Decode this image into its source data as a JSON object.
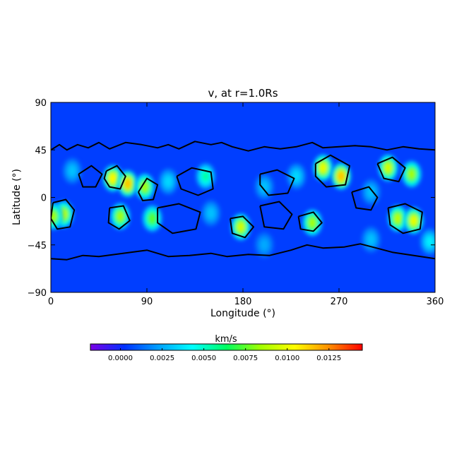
{
  "chart_data": {
    "type": "heatmap",
    "title": "v, at r=1.0Rs",
    "xlabel": "Longitude (°)",
    "ylabel": "Latitude (°)",
    "xlim": [
      0,
      360
    ],
    "ylim": [
      -90,
      90
    ],
    "x_ticks": [
      "0",
      "90",
      "180",
      "270",
      "360"
    ],
    "y_ticks": [
      "90",
      "45",
      "0",
      "−45",
      "−90"
    ],
    "colorbar": {
      "label": "km/s",
      "range": [
        -0.0018,
        0.0145
      ],
      "ticks": [
        "0.0000",
        "0.0025",
        "0.0050",
        "0.0075",
        "0.0100",
        "0.0125"
      ],
      "tick_values": [
        0.0,
        0.0025,
        0.005,
        0.0075,
        0.01,
        0.0125
      ],
      "colors": [
        "#7a00e6",
        "#0030ff",
        "#00a0ff",
        "#00ffff",
        "#00ff60",
        "#a0ff00",
        "#ffff00",
        "#ff9000",
        "#ff0000"
      ]
    },
    "background_value": 0.0005,
    "hot_spots": [
      {
        "lon": 58,
        "lat": 18,
        "value": 0.0105
      },
      {
        "lon": 72,
        "lat": 13,
        "value": 0.0115
      },
      {
        "lon": 88,
        "lat": 10,
        "value": 0.0085
      },
      {
        "lon": 12,
        "lat": -16,
        "value": 0.009
      },
      {
        "lon": 2,
        "lat": -18,
        "value": 0.0085
      },
      {
        "lon": 65,
        "lat": -18,
        "value": 0.0085
      },
      {
        "lon": 95,
        "lat": -20,
        "value": 0.0075
      },
      {
        "lon": 178,
        "lat": -28,
        "value": 0.0095
      },
      {
        "lon": 245,
        "lat": -24,
        "value": 0.0085
      },
      {
        "lon": 255,
        "lat": 28,
        "value": 0.01
      },
      {
        "lon": 272,
        "lat": 20,
        "value": 0.0115
      },
      {
        "lon": 316,
        "lat": 28,
        "value": 0.0095
      },
      {
        "lon": 338,
        "lat": 22,
        "value": 0.0085
      },
      {
        "lon": 325,
        "lat": -20,
        "value": 0.009
      },
      {
        "lon": 340,
        "lat": -22,
        "value": 0.01
      },
      {
        "lon": 145,
        "lat": 20,
        "value": 0.0055
      },
      {
        "lon": 110,
        "lat": 15,
        "value": 0.0035
      },
      {
        "lon": 20,
        "lat": 25,
        "value": 0.003
      },
      {
        "lon": 200,
        "lat": 10,
        "value": 0.003
      },
      {
        "lon": 230,
        "lat": 20,
        "value": 0.0035
      },
      {
        "lon": 300,
        "lat": 5,
        "value": 0.003
      },
      {
        "lon": 150,
        "lat": -15,
        "value": 0.003
      },
      {
        "lon": 200,
        "lat": -45,
        "value": 0.0025
      },
      {
        "lon": 300,
        "lat": -40,
        "value": 0.003
      },
      {
        "lon": 355,
        "lat": -42,
        "value": 0.004
      }
    ],
    "contours": [
      {
        "name": "north-boundary",
        "points": [
          [
            0,
            45
          ],
          [
            8,
            50
          ],
          [
            15,
            45
          ],
          [
            25,
            50
          ],
          [
            35,
            47
          ],
          [
            45,
            52
          ],
          [
            55,
            46
          ],
          [
            70,
            52
          ],
          [
            85,
            50
          ],
          [
            100,
            47
          ],
          [
            110,
            50
          ],
          [
            120,
            46
          ],
          [
            135,
            53
          ],
          [
            150,
            50
          ],
          [
            160,
            52
          ],
          [
            170,
            48
          ],
          [
            185,
            44
          ],
          [
            200,
            48
          ],
          [
            215,
            46
          ],
          [
            230,
            48
          ],
          [
            245,
            52
          ],
          [
            255,
            47
          ],
          [
            270,
            48
          ],
          [
            285,
            49
          ],
          [
            300,
            48
          ],
          [
            315,
            45
          ],
          [
            330,
            48
          ],
          [
            345,
            46
          ],
          [
            360,
            45
          ]
        ]
      },
      {
        "name": "south-boundary",
        "points": [
          [
            0,
            -58
          ],
          [
            15,
            -59
          ],
          [
            30,
            -55
          ],
          [
            45,
            -56
          ],
          [
            60,
            -54
          ],
          [
            75,
            -52
          ],
          [
            90,
            -50
          ],
          [
            110,
            -56
          ],
          [
            130,
            -55
          ],
          [
            150,
            -53
          ],
          [
            165,
            -56
          ],
          [
            185,
            -54
          ],
          [
            205,
            -55
          ],
          [
            225,
            -50
          ],
          [
            240,
            -45
          ],
          [
            255,
            -48
          ],
          [
            275,
            -47
          ],
          [
            290,
            -44
          ],
          [
            305,
            -48
          ],
          [
            320,
            -52
          ],
          [
            340,
            -55
          ],
          [
            360,
            -58
          ]
        ]
      },
      {
        "name": "loop-60-lon",
        "points": [
          [
            52,
            25
          ],
          [
            62,
            30
          ],
          [
            70,
            20
          ],
          [
            65,
            8
          ],
          [
            55,
            10
          ],
          [
            50,
            18
          ],
          [
            52,
            25
          ]
        ]
      },
      {
        "name": "loop-90-lon",
        "points": [
          [
            82,
            5
          ],
          [
            90,
            18
          ],
          [
            100,
            12
          ],
          [
            96,
            -2
          ],
          [
            86,
            -3
          ],
          [
            82,
            5
          ]
        ]
      },
      {
        "name": "loop-10-lon",
        "points": [
          [
            2,
            -5
          ],
          [
            14,
            -2
          ],
          [
            22,
            -12
          ],
          [
            18,
            -28
          ],
          [
            6,
            -30
          ],
          [
            0,
            -20
          ],
          [
            2,
            -5
          ]
        ]
      },
      {
        "name": "loop-65-south",
        "points": [
          [
            55,
            -10
          ],
          [
            68,
            -8
          ],
          [
            74,
            -22
          ],
          [
            64,
            -30
          ],
          [
            54,
            -24
          ],
          [
            55,
            -10
          ]
        ]
      },
      {
        "name": "loop-180",
        "points": [
          [
            168,
            -20
          ],
          [
            180,
            -18
          ],
          [
            190,
            -28
          ],
          [
            182,
            -38
          ],
          [
            170,
            -34
          ],
          [
            168,
            -20
          ]
        ]
      },
      {
        "name": "loop-245",
        "points": [
          [
            232,
            -18
          ],
          [
            246,
            -14
          ],
          [
            254,
            -24
          ],
          [
            246,
            -32
          ],
          [
            234,
            -30
          ],
          [
            232,
            -18
          ]
        ]
      },
      {
        "name": "loop-265",
        "points": [
          [
            248,
            32
          ],
          [
            262,
            40
          ],
          [
            280,
            30
          ],
          [
            276,
            12
          ],
          [
            258,
            10
          ],
          [
            248,
            20
          ],
          [
            248,
            32
          ]
        ]
      },
      {
        "name": "loop-320",
        "points": [
          [
            306,
            32
          ],
          [
            320,
            38
          ],
          [
            332,
            28
          ],
          [
            326,
            15
          ],
          [
            312,
            18
          ],
          [
            306,
            32
          ]
        ]
      },
      {
        "name": "loop-335-south",
        "points": [
          [
            316,
            -10
          ],
          [
            332,
            -6
          ],
          [
            348,
            -14
          ],
          [
            346,
            -30
          ],
          [
            330,
            -34
          ],
          [
            318,
            -26
          ],
          [
            316,
            -10
          ]
        ]
      },
      {
        "name": "loop-130",
        "points": [
          [
            118,
            20
          ],
          [
            132,
            28
          ],
          [
            150,
            24
          ],
          [
            152,
            8
          ],
          [
            138,
            2
          ],
          [
            122,
            8
          ],
          [
            118,
            20
          ]
        ]
      },
      {
        "name": "loop-210",
        "points": [
          [
            196,
            22
          ],
          [
            212,
            26
          ],
          [
            228,
            18
          ],
          [
            222,
            4
          ],
          [
            204,
            2
          ],
          [
            196,
            12
          ],
          [
            196,
            22
          ]
        ]
      },
      {
        "name": "loop-100-south",
        "points": [
          [
            100,
            -10
          ],
          [
            120,
            -6
          ],
          [
            140,
            -14
          ],
          [
            136,
            -30
          ],
          [
            114,
            -34
          ],
          [
            100,
            -24
          ],
          [
            100,
            -10
          ]
        ]
      },
      {
        "name": "loop-290",
        "points": [
          [
            282,
            5
          ],
          [
            298,
            10
          ],
          [
            306,
            0
          ],
          [
            300,
            -12
          ],
          [
            286,
            -10
          ],
          [
            282,
            5
          ]
        ]
      },
      {
        "name": "loop-200-south",
        "points": [
          [
            196,
            -8
          ],
          [
            214,
            -4
          ],
          [
            226,
            -16
          ],
          [
            218,
            -30
          ],
          [
            200,
            -28
          ],
          [
            196,
            -8
          ]
        ]
      },
      {
        "name": "loop-40-north",
        "points": [
          [
            26,
            22
          ],
          [
            38,
            30
          ],
          [
            48,
            22
          ],
          [
            42,
            10
          ],
          [
            30,
            10
          ],
          [
            26,
            22
          ]
        ]
      }
    ]
  }
}
